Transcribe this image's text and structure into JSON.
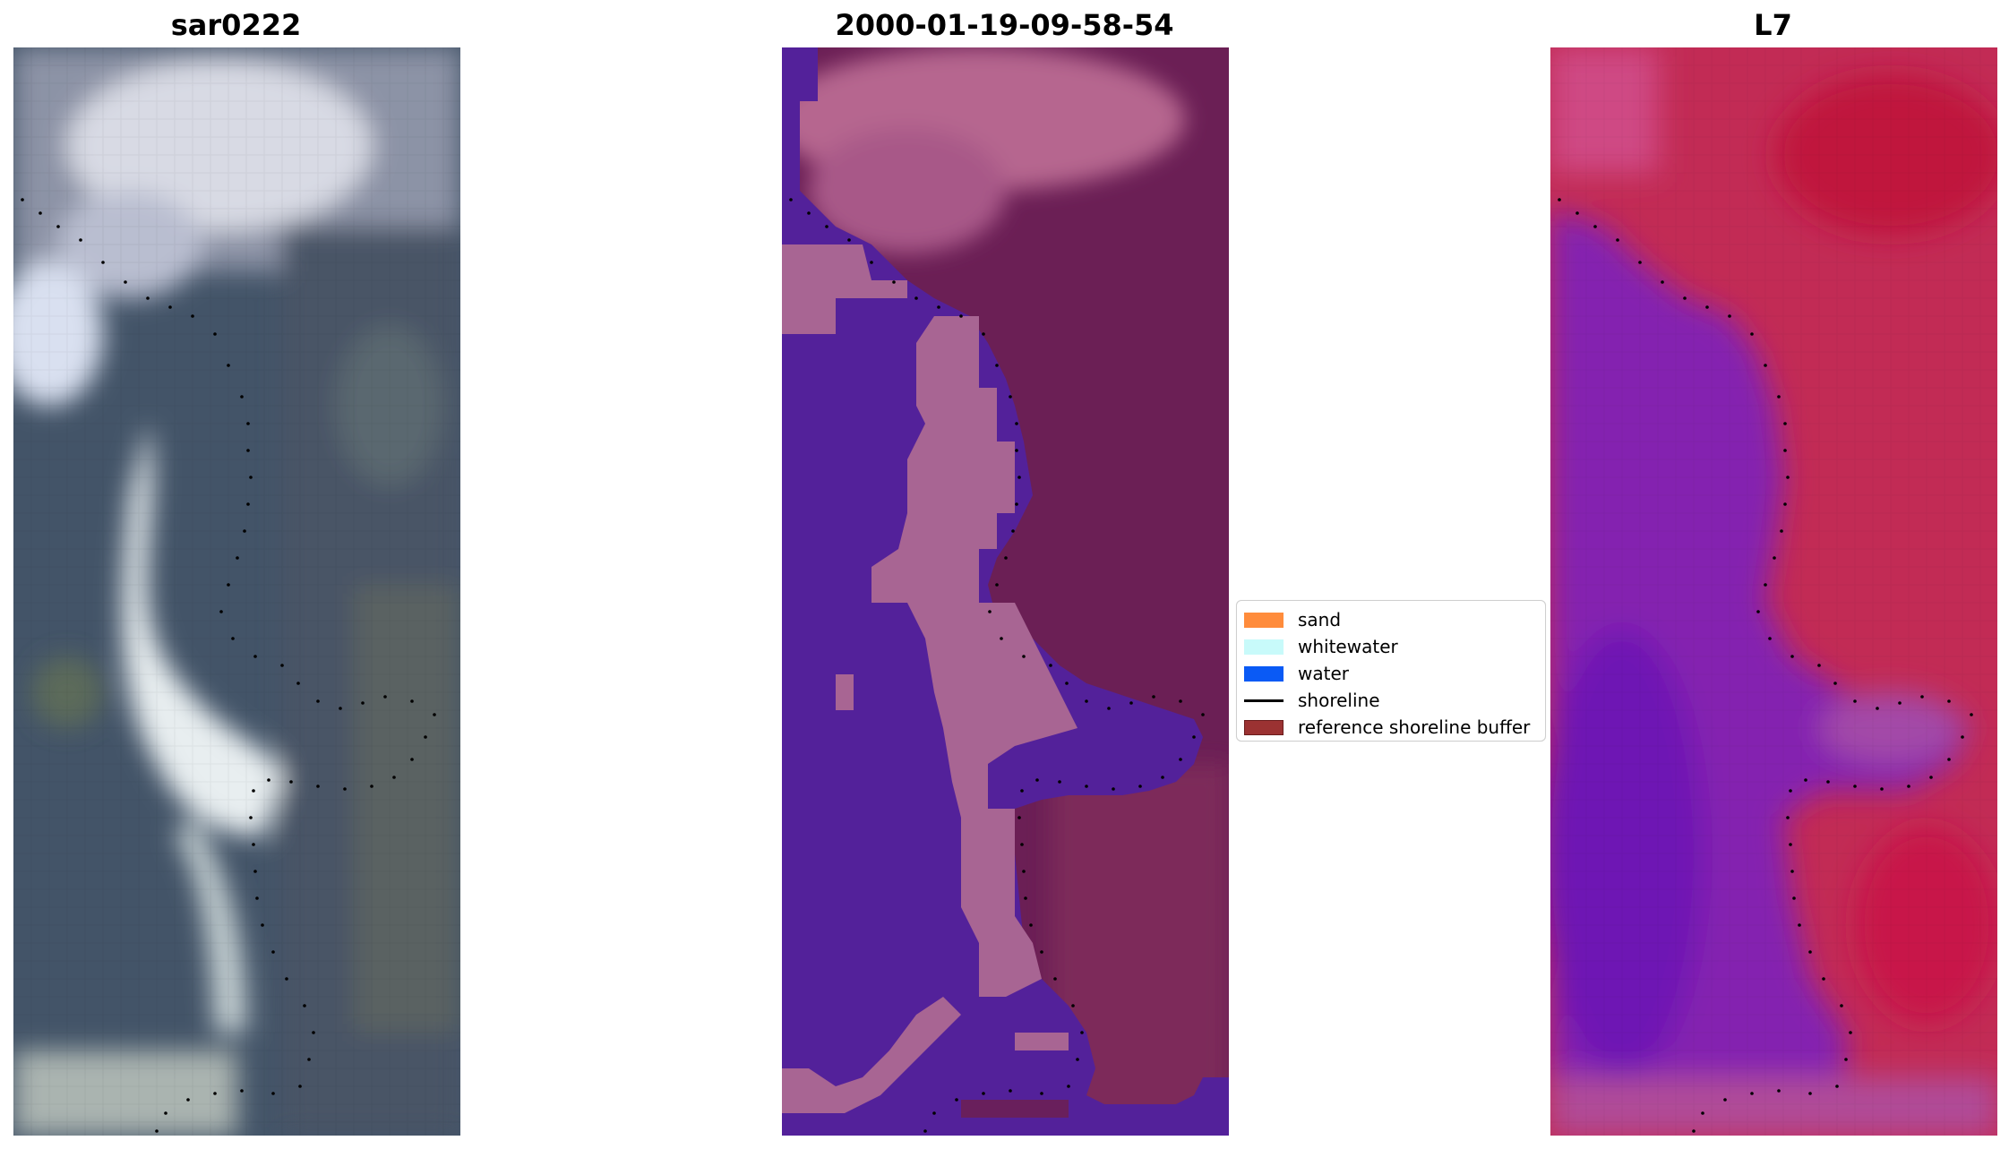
{
  "panels": [
    {
      "title": "sar0222"
    },
    {
      "title": "2000-01-19-09-58-54"
    },
    {
      "title": "L7"
    }
  ],
  "legend": {
    "items": [
      {
        "label": "sand",
        "color": "#ff8c3c",
        "kind": "patch"
      },
      {
        "label": "whitewater",
        "color": "#c8fafa",
        "kind": "patch"
      },
      {
        "label": "water",
        "color": "#0a5af5",
        "kind": "patch"
      },
      {
        "label": "shoreline",
        "color": "#000000",
        "kind": "line"
      },
      {
        "label": "reference shoreline buffer",
        "color": "#9b3232",
        "kind": "patch",
        "edge": "#6a1c1c"
      }
    ]
  },
  "colors": {
    "rgb_base": "#3f5269",
    "rgb_bright": "#e8ecf2",
    "class_water": "#53219a",
    "class_land": "#6b1f55",
    "class_sand": "#a86593",
    "class_top": "#b6668f",
    "false_color_land": "#c0163e",
    "false_color_water": "#7b1cac"
  }
}
